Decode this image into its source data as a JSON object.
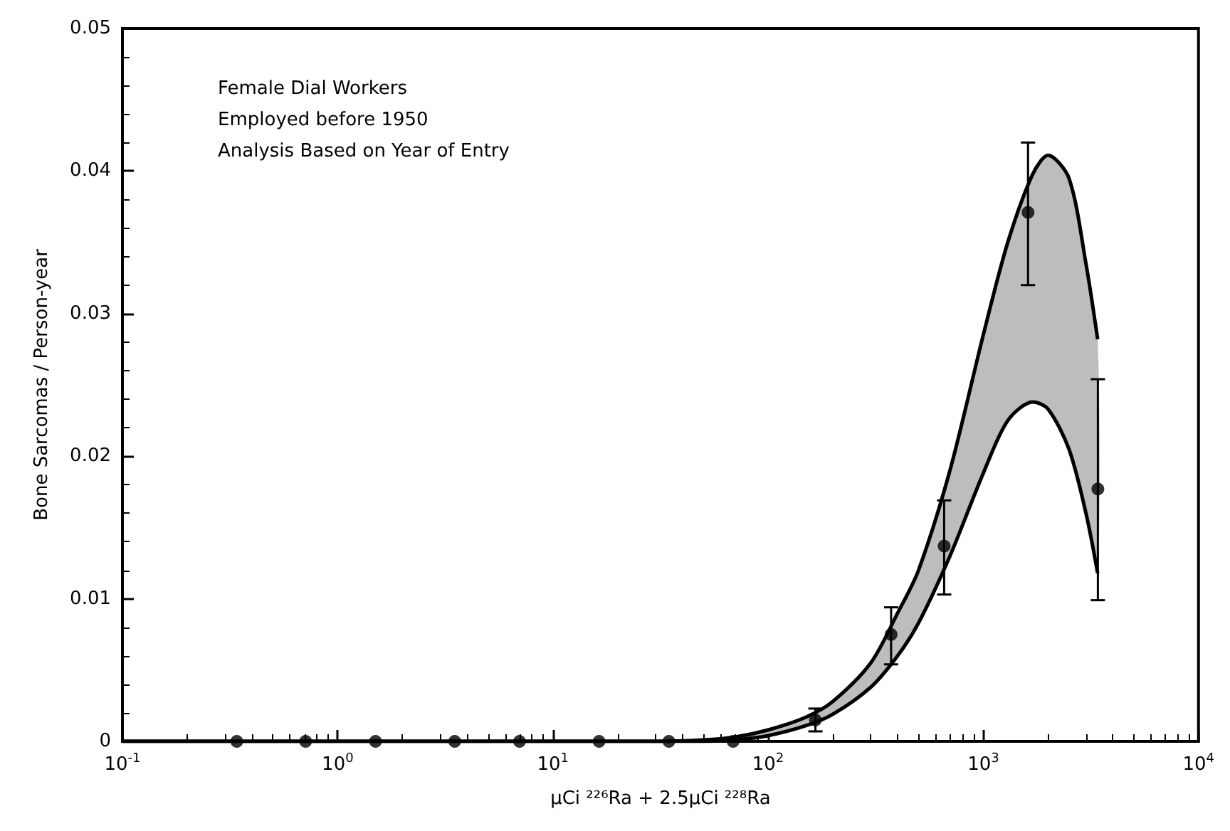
{
  "chart_data": {
    "type": "scatter",
    "xlabel": "μCi ²²⁶Ra + 2.5μCi ²²⁸Ra",
    "ylabel": "Bone Sarcomas / Person-year",
    "annotations": [
      "Female Dial Workers",
      "Employed before 1950",
      "Analysis Based on Year of Entry"
    ],
    "log": "x",
    "xlim": [
      0.1,
      10000
    ],
    "xticks": [
      {
        "value": 0.1,
        "label": "10$^{-1}$"
      },
      {
        "value": 1,
        "label": "10$^{0}$"
      },
      {
        "value": 10,
        "label": "10$^{1}$"
      },
      {
        "value": 100,
        "label": "10$^{2}$"
      },
      {
        "value": 1000,
        "label": "10$^{3}$"
      },
      {
        "value": 10000,
        "label": "10$^{4}$"
      }
    ],
    "ylim": [
      0,
      0.05
    ],
    "yticks": [
      0,
      0.01,
      0.02,
      0.03,
      0.04,
      0.05
    ],
    "grid": false,
    "marker": "circle",
    "series": [
      {
        "color": "#000000",
        "x": [
          0.34,
          0.71,
          1.5,
          3.5,
          7.0,
          16.4,
          34.6,
          68.8,
          166,
          373,
          658,
          1614,
          3408
        ],
        "values": [
          0,
          0,
          0,
          0,
          0,
          0,
          0,
          0,
          0.0015,
          0.0075,
          0.0137,
          0.0371,
          0.0177
        ],
        "errors": [
          null,
          null,
          null,
          null,
          null,
          null,
          null,
          null,
          [
            0.0007,
            0.0023
          ],
          [
            0.0054,
            0.0094
          ],
          [
            0.0103,
            0.0169
          ],
          [
            0.032,
            0.042
          ],
          [
            0.0099,
            0.0254
          ]
        ]
      },
      {
        "type": "line",
        "color": "#000000",
        "marker": "none",
        "x": [
          0.1,
          10,
          30,
          50,
          70,
          100,
          150,
          200,
          300,
          400,
          500,
          700,
          1000,
          1300,
          1700,
          2000,
          2500,
          3000,
          3400
        ],
        "values": [
          0,
          0,
          0,
          0,
          0.0001,
          0.0004,
          0.0011,
          0.0019,
          0.0038,
          0.006,
          0.0083,
          0.013,
          0.0188,
          0.0225,
          0.0238,
          0.0233,
          0.0205,
          0.016,
          0.0118
        ]
      },
      {
        "type": "line",
        "color": "#000000",
        "marker": "none",
        "x": [
          0.1,
          10,
          30,
          50,
          70,
          100,
          150,
          200,
          300,
          400,
          500,
          700,
          1000,
          1300,
          1700,
          2000,
          2500,
          3000,
          3400
        ],
        "values": [
          0,
          0,
          0,
          0.0001,
          0.0003,
          0.0008,
          0.0017,
          0.0028,
          0.0055,
          0.009,
          0.012,
          0.019,
          0.0285,
          0.035,
          0.0398,
          0.0411,
          0.0395,
          0.0335,
          0.0282
        ],
        "upper": [
          0,
          0,
          0,
          0.0001,
          0.0003,
          0.0008,
          0.0017,
          0.0028,
          0.0055,
          0.009,
          0.012,
          0.019,
          0.0285,
          0.035,
          0.0398,
          0.0411,
          0.0395,
          0.0335,
          0.0282
        ],
        "lower": [
          0,
          0,
          0,
          0,
          0.0001,
          0.0004,
          0.0011,
          0.0019,
          0.0038,
          0.006,
          0.0083,
          0.013,
          0.0188,
          0.0225,
          0.0238,
          0.0233,
          0.0205,
          0.016,
          0.0118
        ]
      }
    ]
  }
}
